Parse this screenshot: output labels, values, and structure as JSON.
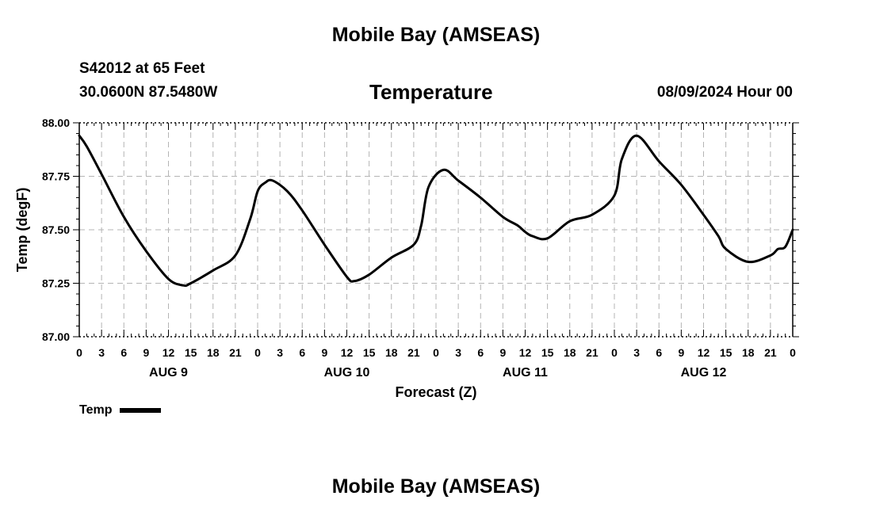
{
  "header": {
    "top_title": "Mobile Bay (AMSEAS)",
    "station": "S42012 at 65 Feet",
    "coords": "30.0600N  87.5480W",
    "variable_title": "Temperature",
    "forecast_time": "08/09/2024 Hour 00"
  },
  "footer": {
    "bottom_title": "Mobile Bay (AMSEAS)"
  },
  "legend": {
    "label": "Temp"
  },
  "chart_data": {
    "type": "line",
    "xlabel": "Forecast (Z)",
    "ylabel": "Temp (degF)",
    "xlim": [
      0,
      96
    ],
    "ylim": [
      87.0,
      88.0
    ],
    "grid": true,
    "legend_position": "bottom-left",
    "yticks": [
      "87.00",
      "87.25",
      "87.50",
      "87.75",
      "88.00"
    ],
    "xtick_labels": [
      "0",
      "3",
      "6",
      "9",
      "12",
      "15",
      "18",
      "21",
      "0",
      "3",
      "6",
      "9",
      "12",
      "15",
      "18",
      "21",
      "0",
      "3",
      "6",
      "9",
      "12",
      "15",
      "18",
      "21",
      "0",
      "3",
      "6",
      "9",
      "12",
      "15",
      "18",
      "21",
      "0"
    ],
    "day_labels": [
      {
        "label": "AUG 9",
        "hour": 12
      },
      {
        "label": "AUG 10",
        "hour": 36
      },
      {
        "label": "AUG 11",
        "hour": 60
      },
      {
        "label": "AUG 12",
        "hour": 84
      }
    ],
    "series": [
      {
        "name": "Temp",
        "color": "#000000",
        "x": [
          0,
          1,
          3,
          6,
          9,
          12,
          14,
          15,
          18,
          21,
          23,
          24,
          25,
          26,
          28,
          30,
          33,
          36,
          37,
          39,
          42,
          45,
          46,
          47,
          49,
          51,
          54,
          57,
          59,
          60,
          61,
          63,
          66,
          69,
          72,
          73,
          75,
          78,
          81,
          84,
          86,
          87,
          90,
          93,
          94,
          95,
          96
        ],
        "y": [
          87.94,
          87.89,
          87.76,
          87.56,
          87.4,
          87.27,
          87.24,
          87.25,
          87.31,
          87.38,
          87.55,
          87.68,
          87.72,
          87.73,
          87.68,
          87.59,
          87.43,
          87.28,
          87.26,
          87.29,
          87.37,
          87.43,
          87.52,
          87.7,
          87.78,
          87.73,
          87.65,
          87.56,
          87.52,
          87.49,
          87.47,
          87.46,
          87.54,
          87.57,
          87.66,
          87.83,
          87.94,
          87.82,
          87.71,
          87.57,
          87.47,
          87.41,
          87.35,
          87.38,
          87.41,
          87.42,
          87.5
        ]
      }
    ]
  }
}
